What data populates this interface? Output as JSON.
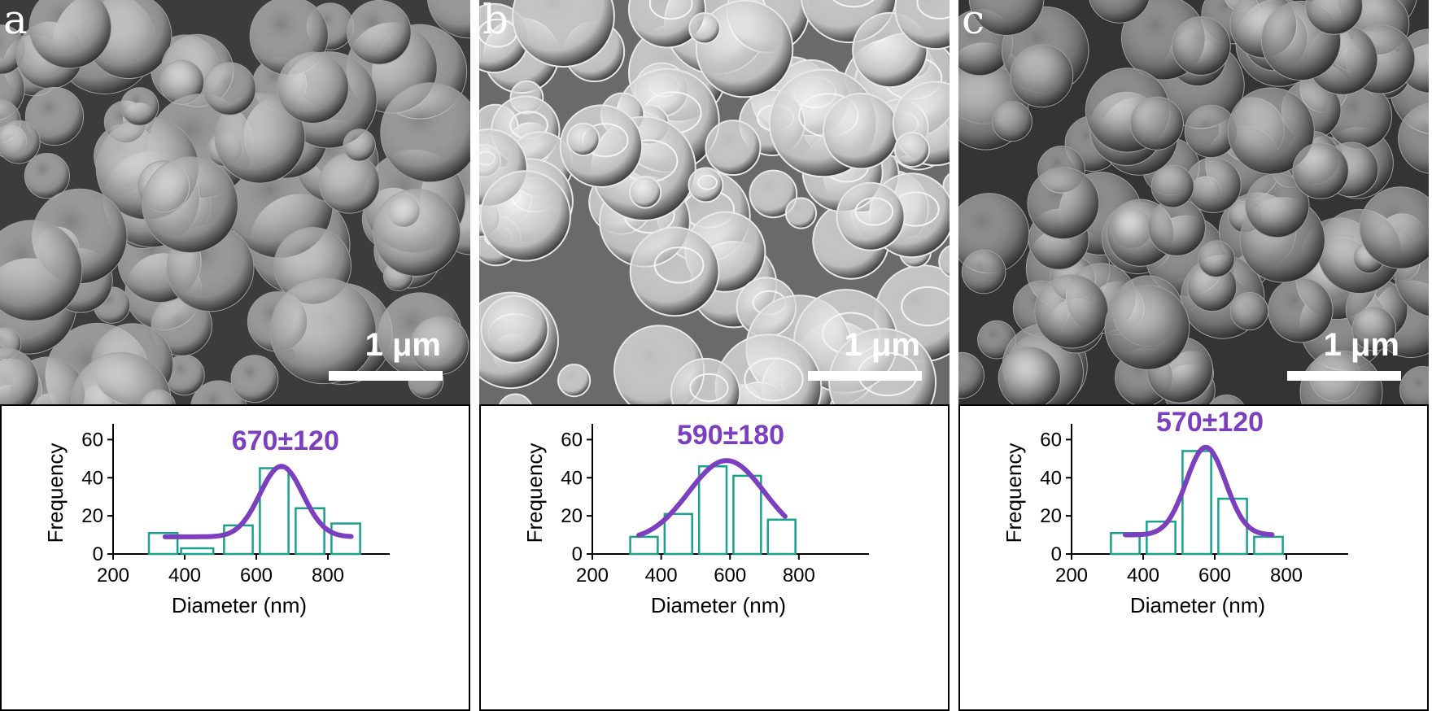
{
  "panels": [
    {
      "letter": "a",
      "scale_label": "1 μm",
      "sem_tone": "#3c3c3c",
      "particle_tone": "#8a8a8a",
      "annotation": "670±120"
    },
    {
      "letter": "b",
      "scale_label": "1 μm",
      "sem_tone": "#6a6a6a",
      "particle_tone": "#bdbdbd",
      "annotation": "590±180"
    },
    {
      "letter": "c",
      "scale_label": "1 μm",
      "sem_tone": "#343434",
      "particle_tone": "#6c6c6c",
      "annotation": "570±120"
    }
  ],
  "colors": {
    "bars": "#1aa08c",
    "fit": "#7b3fbf",
    "annotation": "#7b3fbf"
  },
  "chart_data": [
    {
      "type": "bar",
      "xlabel": "Diameter (nm)",
      "ylabel": "Frequency",
      "xlim": [
        200,
        950
      ],
      "ylim": [
        0,
        64
      ],
      "xticks": [
        200,
        400,
        600,
        800
      ],
      "yticks": [
        0,
        20,
        40,
        60
      ],
      "bins": [
        {
          "x0": 300,
          "x1": 380,
          "value": 11
        },
        {
          "x0": 390,
          "x1": 480,
          "value": 3
        },
        {
          "x0": 510,
          "x1": 590,
          "value": 15
        },
        {
          "x0": 610,
          "x1": 690,
          "value": 45
        },
        {
          "x0": 710,
          "x1": 790,
          "value": 24
        },
        {
          "x0": 810,
          "x1": 890,
          "value": 16
        }
      ],
      "fit": {
        "mean": 670,
        "sigma": 60,
        "amplitude": 37,
        "baseline": 9,
        "x_from": 345,
        "x_to": 865
      }
    },
    {
      "type": "bar",
      "xlabel": "Diameter (nm)",
      "ylabel": "Frequency",
      "xlim": [
        200,
        980
      ],
      "ylim": [
        0,
        64
      ],
      "xticks": [
        200,
        400,
        600,
        800
      ],
      "yticks": [
        0,
        20,
        40,
        60
      ],
      "bins": [
        {
          "x0": 310,
          "x1": 390,
          "value": 9
        },
        {
          "x0": 410,
          "x1": 490,
          "value": 21
        },
        {
          "x0": 510,
          "x1": 590,
          "value": 46
        },
        {
          "x0": 610,
          "x1": 690,
          "value": 41
        },
        {
          "x0": 710,
          "x1": 790,
          "value": 18
        }
      ],
      "fit": {
        "mean": 590,
        "sigma": 110,
        "amplitude": 42,
        "baseline": 7,
        "x_from": 335,
        "x_to": 760
      }
    },
    {
      "type": "bar",
      "xlabel": "Diameter (nm)",
      "ylabel": "Frequency",
      "xlim": [
        200,
        950
      ],
      "ylim": [
        0,
        64
      ],
      "xticks": [
        200,
        400,
        600,
        800
      ],
      "yticks": [
        0,
        20,
        40,
        60
      ],
      "bins": [
        {
          "x0": 310,
          "x1": 390,
          "value": 11
        },
        {
          "x0": 410,
          "x1": 490,
          "value": 17
        },
        {
          "x0": 510,
          "x1": 590,
          "value": 54
        },
        {
          "x0": 610,
          "x1": 690,
          "value": 29
        },
        {
          "x0": 710,
          "x1": 790,
          "value": 9
        }
      ],
      "fit": {
        "mean": 575,
        "sigma": 55,
        "amplitude": 46,
        "baseline": 10,
        "x_from": 350,
        "x_to": 760
      }
    }
  ]
}
